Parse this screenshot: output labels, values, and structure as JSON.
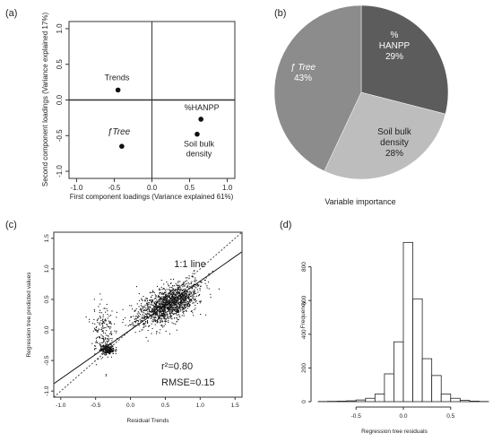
{
  "chart_data": [
    {
      "panel": "(a)",
      "type": "scatter",
      "xlabel": "First component loadings (Variance explained 61%)",
      "ylabel": "Second component loadings (Variance explained 17%)",
      "xlim": [
        -1.1,
        1.1
      ],
      "ylim": [
        -1.1,
        1.1
      ],
      "xticks": [
        "-1.0",
        "-0.5",
        "0.0",
        "0.5",
        "1.0"
      ],
      "yticks": [
        "1.0",
        "0.5",
        "0.0",
        "-0.5",
        "-1.0"
      ],
      "points": [
        {
          "label": "Trends",
          "x": -0.45,
          "y": 0.14
        },
        {
          "label": "ƒTree",
          "x": -0.4,
          "y": -0.65
        },
        {
          "label": "%HANPP",
          "x": 0.65,
          "y": -0.27
        },
        {
          "label": "Soil bulk density",
          "x": 0.6,
          "y": -0.48
        }
      ]
    },
    {
      "panel": "(b)",
      "type": "pie",
      "title": "Variable importance",
      "slices": [
        {
          "label": "%\nHANPP",
          "value": 29,
          "value_label": "29%",
          "color": "#5c5c5c"
        },
        {
          "label": "Soil bulk\ndensity",
          "value": 28,
          "value_label": "28%",
          "color": "#bdbdbd"
        },
        {
          "label": "ƒ Tree",
          "value": 43,
          "value_label": "43%",
          "color": "#8c8c8c"
        }
      ]
    },
    {
      "panel": "(c)",
      "type": "scatter",
      "xlabel": "Residual Trends",
      "ylabel": "Regression tree predicted values",
      "xlim": [
        -1.1,
        1.6
      ],
      "ylim": [
        -1.1,
        1.6
      ],
      "xticks": [
        "-1.0",
        "-0.5",
        "0.0",
        "0.5",
        "1.0",
        "1.5"
      ],
      "yticks": [
        "-1.0",
        "-0.5",
        "0.0",
        "0.5",
        "1.0",
        "1.5"
      ],
      "one_to_one_label": "1:1 line",
      "regression_line": {
        "slope": 0.8,
        "intercept": 0.0
      },
      "r2_label": "r²=0.80",
      "rmse_label": "RMSE=0.15",
      "clusters": [
        {
          "cx": 0.55,
          "cy": 0.42,
          "sx": 0.22,
          "sy": 0.14,
          "n": 1500
        },
        {
          "cx": -0.33,
          "cy": -0.32,
          "sx": 0.05,
          "sy": 0.04,
          "n": 260
        },
        {
          "cx": -0.4,
          "cy": 0.0,
          "sx": 0.08,
          "sy": 0.24,
          "n": 180
        }
      ]
    },
    {
      "panel": "(d)",
      "type": "bar",
      "xlabel": "Regression tree residuals",
      "ylabel": "Frequency",
      "xlim": [
        -0.9,
        0.9
      ],
      "ylim": [
        0,
        1000
      ],
      "xticks": [
        "-0.5",
        "0.0",
        "0.5"
      ],
      "yticks": [
        "0",
        "200",
        "400",
        "600",
        "800"
      ],
      "bin_width": 0.1,
      "bin_left_edges": [
        -0.9,
        -0.8,
        -0.7,
        -0.6,
        -0.5,
        -0.4,
        -0.3,
        -0.2,
        -0.1,
        0.0,
        0.1,
        0.2,
        0.3,
        0.4,
        0.5,
        0.6,
        0.7,
        0.8
      ],
      "counts": [
        1,
        2,
        3,
        5,
        10,
        20,
        45,
        165,
        355,
        945,
        610,
        255,
        155,
        45,
        20,
        8,
        3,
        1
      ]
    }
  ]
}
